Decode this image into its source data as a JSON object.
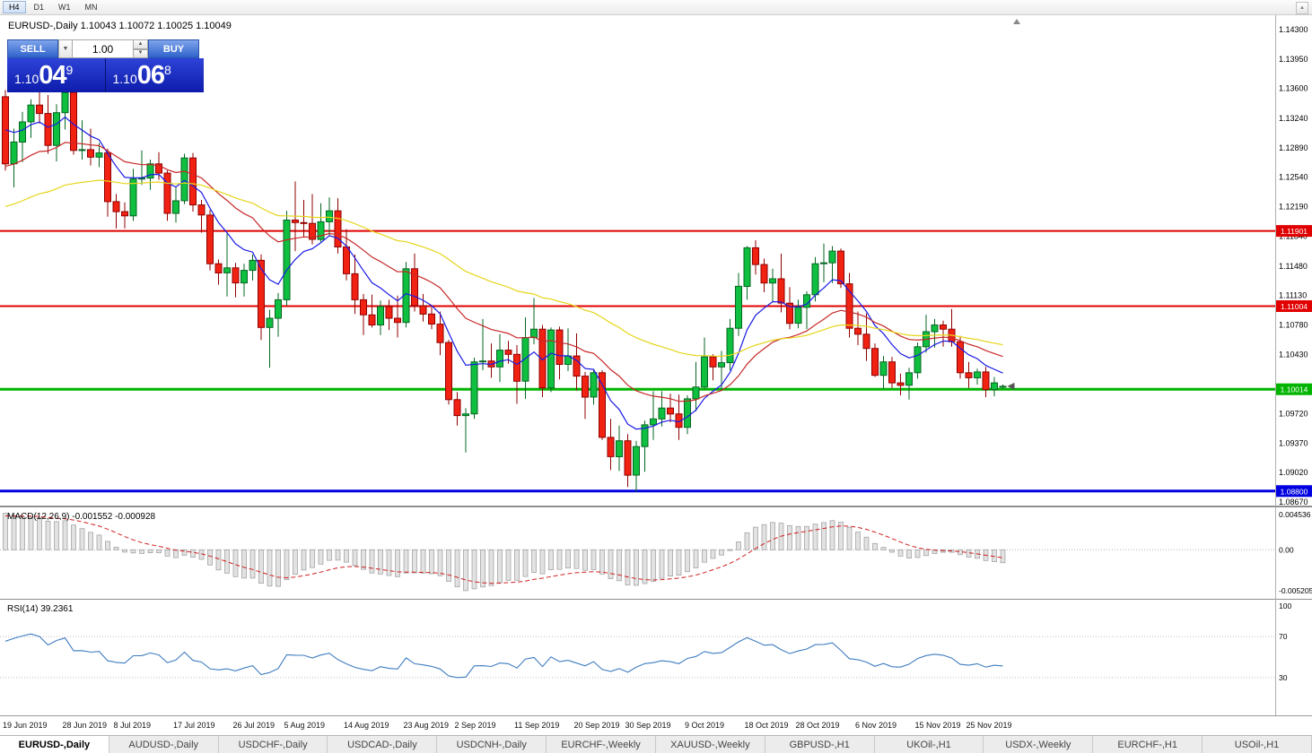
{
  "toolbar": {
    "timeframes": [
      "H4",
      "D1",
      "W1",
      "MN"
    ],
    "active_timeframe": "H4"
  },
  "chart": {
    "title": "EURUSD-,Daily 1.10043 1.10072 1.10025 1.10049",
    "symbol": "EURUSD-",
    "period": "Daily"
  },
  "trade": {
    "sell_label": "SELL",
    "buy_label": "BUY",
    "volume": "1.00",
    "sell_price": {
      "base": "1.10",
      "big": "04",
      "sup": "9"
    },
    "buy_price": {
      "base": "1.10",
      "big": "06",
      "sup": "8"
    }
  },
  "chart_data": {
    "type": "candlestick",
    "symbol": "EURUSD-",
    "timeframe": "Daily",
    "ohlc_display": {
      "open": "1.10043",
      "high": "1.10072",
      "low": "1.10025",
      "close": "1.10049"
    },
    "ylim": [
      1.0867,
      1.143
    ],
    "up_color": "#0fbf3f",
    "up_edge": "#056622",
    "down_color": "#f22213",
    "down_edge": "#8f0000",
    "y_axis_labels": [
      "1.14300",
      "1.13950",
      "1.13600",
      "1.13240",
      "1.12890",
      "1.12540",
      "1.12190",
      "1.11840",
      "1.11480",
      "1.11130",
      "1.10780",
      "1.10430",
      "1.09720",
      "1.09370",
      "1.09020",
      "1.08670"
    ],
    "x_axis_labels": [
      {
        "text": "19 Jun 2019",
        "i": 0
      },
      {
        "text": "28 Jun 2019",
        "i": 7
      },
      {
        "text": "8 Jul 2019",
        "i": 13
      },
      {
        "text": "17 Jul 2019",
        "i": 20
      },
      {
        "text": "26 Jul 2019",
        "i": 27
      },
      {
        "text": "5 Aug 2019",
        "i": 33
      },
      {
        "text": "14 Aug 2019",
        "i": 40
      },
      {
        "text": "23 Aug 2019",
        "i": 47
      },
      {
        "text": "2 Sep 2019",
        "i": 53
      },
      {
        "text": "11 Sep 2019",
        "i": 60
      },
      {
        "text": "20 Sep 2019",
        "i": 67
      },
      {
        "text": "30 Sep 2019",
        "i": 73
      },
      {
        "text": "9 Oct 2019",
        "i": 80
      },
      {
        "text": "18 Oct 2019",
        "i": 87
      },
      {
        "text": "28 Oct 2019",
        "i": 93
      },
      {
        "text": "6 Nov 2019",
        "i": 100
      },
      {
        "text": "15 Nov 2019",
        "i": 107
      },
      {
        "text": "25 Nov 2019",
        "i": 113
      }
    ],
    "hlines": [
      {
        "value": 1.11901,
        "label": "1.11901",
        "color": "#e00000",
        "width": 2
      },
      {
        "value": 1.11004,
        "label": "1.11004",
        "color": "#e00000",
        "width": 2
      },
      {
        "value": 1.10014,
        "label": "1.10014",
        "color": "#00b400",
        "width": 3
      },
      {
        "value": 1.088,
        "label": "1.08800",
        "color": "#0000e0",
        "width": 3
      }
    ],
    "moving_averages": [
      {
        "period": 8,
        "color": "#1a1ae6"
      },
      {
        "period": 21,
        "color": "#c82828"
      },
      {
        "period": 50,
        "color": "#e6d51a"
      }
    ],
    "warmup_closes": [
      1.116,
      1.1172,
      1.115,
      1.1185,
      1.1232,
      1.1268,
      1.129,
      1.1308,
      1.1322,
      1.1337,
      1.1345,
      1.134,
      1.1333,
      1.1339,
      1.1346
    ],
    "candles": [
      [
        1.135,
        1.1358,
        1.1262,
        1.127
      ],
      [
        1.127,
        1.1312,
        1.1242,
        1.1296
      ],
      [
        1.1296,
        1.1332,
        1.1272,
        1.132
      ],
      [
        1.132,
        1.1347,
        1.1301,
        1.134
      ],
      [
        1.134,
        1.1362,
        1.1318,
        1.133
      ],
      [
        1.133,
        1.1352,
        1.1282,
        1.1292
      ],
      [
        1.1292,
        1.1341,
        1.1273,
        1.1331
      ],
      [
        1.1331,
        1.136,
        1.1311,
        1.1355
      ],
      [
        1.1355,
        1.1361,
        1.1281,
        1.1286
      ],
      [
        1.1286,
        1.1322,
        1.1275,
        1.1287
      ],
      [
        1.1287,
        1.1312,
        1.1268,
        1.1278
      ],
      [
        1.1278,
        1.1295,
        1.1266,
        1.1283
      ],
      [
        1.1283,
        1.1288,
        1.1207,
        1.1225
      ],
      [
        1.1225,
        1.1234,
        1.1193,
        1.1213
      ],
      [
        1.1213,
        1.1224,
        1.1193,
        1.1208
      ],
      [
        1.1208,
        1.1264,
        1.1202,
        1.1252
      ],
      [
        1.1252,
        1.1286,
        1.1245,
        1.1253
      ],
      [
        1.1253,
        1.1275,
        1.1239,
        1.127
      ],
      [
        1.127,
        1.1284,
        1.1251,
        1.1259
      ],
      [
        1.1259,
        1.1262,
        1.1202,
        1.1211
      ],
      [
        1.1211,
        1.1243,
        1.12,
        1.1226
      ],
      [
        1.1226,
        1.1282,
        1.1222,
        1.1277
      ],
      [
        1.1277,
        1.1283,
        1.1213,
        1.1221
      ],
      [
        1.1221,
        1.1227,
        1.1188,
        1.1209
      ],
      [
        1.1209,
        1.1215,
        1.1143,
        1.1151
      ],
      [
        1.1151,
        1.1156,
        1.1126,
        1.114
      ],
      [
        1.114,
        1.1187,
        1.1112,
        1.1146
      ],
      [
        1.1146,
        1.1152,
        1.1111,
        1.1128
      ],
      [
        1.1128,
        1.1151,
        1.1112,
        1.1143
      ],
      [
        1.1143,
        1.1162,
        1.1131,
        1.1155
      ],
      [
        1.1155,
        1.1162,
        1.106,
        1.1075
      ],
      [
        1.1075,
        1.1096,
        1.1027,
        1.1086
      ],
      [
        1.1086,
        1.1116,
        1.1064,
        1.1108
      ],
      [
        1.1108,
        1.1214,
        1.1101,
        1.1203
      ],
      [
        1.1203,
        1.1249,
        1.1166,
        1.12
      ],
      [
        1.12,
        1.1227,
        1.1183,
        1.1199
      ],
      [
        1.1199,
        1.1234,
        1.1174,
        1.118
      ],
      [
        1.118,
        1.1223,
        1.1177,
        1.1201
      ],
      [
        1.1201,
        1.123,
        1.1184,
        1.1214
      ],
      [
        1.1214,
        1.1229,
        1.1163,
        1.1171
      ],
      [
        1.1171,
        1.1192,
        1.1131,
        1.1139
      ],
      [
        1.1139,
        1.1162,
        1.1091,
        1.1108
      ],
      [
        1.1108,
        1.1115,
        1.1066,
        1.109
      ],
      [
        1.109,
        1.1114,
        1.1075,
        1.1078
      ],
      [
        1.1078,
        1.1107,
        1.1066,
        1.11
      ],
      [
        1.11,
        1.1108,
        1.1072,
        1.1086
      ],
      [
        1.1086,
        1.1113,
        1.1063,
        1.1081
      ],
      [
        1.1081,
        1.1153,
        1.1075,
        1.1145
      ],
      [
        1.1145,
        1.1163,
        1.1094,
        1.1101
      ],
      [
        1.1101,
        1.1115,
        1.1082,
        1.1091
      ],
      [
        1.1091,
        1.1099,
        1.1073,
        1.1079
      ],
      [
        1.1079,
        1.1094,
        1.1042,
        1.1057
      ],
      [
        1.1057,
        1.106,
        1.0983,
        1.0989
      ],
      [
        1.0989,
        1.0998,
        1.0958,
        1.097
      ],
      [
        1.097,
        1.0979,
        1.0926,
        1.0972
      ],
      [
        1.0972,
        1.1039,
        1.0966,
        1.1034
      ],
      [
        1.1034,
        1.1085,
        1.1024,
        1.1035
      ],
      [
        1.1035,
        1.1056,
        1.1015,
        1.1028
      ],
      [
        1.1028,
        1.1067,
        1.101,
        1.1048
      ],
      [
        1.1048,
        1.1059,
        1.1032,
        1.1043
      ],
      [
        1.1043,
        1.1054,
        1.0984,
        1.1011
      ],
      [
        1.1011,
        1.1087,
        1.099,
        1.1063
      ],
      [
        1.1063,
        1.111,
        1.1055,
        1.1073
      ],
      [
        1.1073,
        1.1078,
        1.0992,
        1.1003
      ],
      [
        1.1003,
        1.1075,
        1.0998,
        1.1072
      ],
      [
        1.1072,
        1.1076,
        1.1013,
        1.1031
      ],
      [
        1.1031,
        1.1074,
        1.1023,
        1.1041
      ],
      [
        1.1041,
        1.1068,
        1.1,
        1.1017
      ],
      [
        1.1017,
        1.1022,
        1.0966,
        1.0992
      ],
      [
        1.0992,
        1.1024,
        1.0983,
        1.1021
      ],
      [
        1.1021,
        1.1024,
        1.0941,
        1.0944
      ],
      [
        1.0944,
        1.0966,
        1.0905,
        1.0921
      ],
      [
        1.0921,
        1.0958,
        1.0904,
        1.094
      ],
      [
        1.094,
        1.0948,
        1.0885,
        1.0899
      ],
      [
        1.0899,
        1.094,
        1.0879,
        1.0933
      ],
      [
        1.0933,
        1.0964,
        1.0903,
        1.0959
      ],
      [
        1.0959,
        1.0999,
        1.0941,
        1.0966
      ],
      [
        1.0966,
        1.0999,
        1.0957,
        1.0979
      ],
      [
        1.0979,
        1.0996,
        1.0962,
        1.0972
      ],
      [
        1.0972,
        1.0995,
        1.0941,
        1.0956
      ],
      [
        1.0956,
        1.0994,
        1.0948,
        1.099
      ],
      [
        1.099,
        1.1034,
        1.0975,
        1.1004
      ],
      [
        1.1004,
        1.1063,
        1.1002,
        1.104
      ],
      [
        1.104,
        1.1043,
        1.1012,
        1.1028
      ],
      [
        1.1028,
        1.1047,
        1.1001,
        1.1033
      ],
      [
        1.1033,
        1.1085,
        1.1024,
        1.1074
      ],
      [
        1.1074,
        1.114,
        1.1065,
        1.1124
      ],
      [
        1.1124,
        1.1172,
        1.1108,
        1.117
      ],
      [
        1.117,
        1.1179,
        1.1138,
        1.115
      ],
      [
        1.115,
        1.1157,
        1.1117,
        1.1128
      ],
      [
        1.1128,
        1.1145,
        1.1105,
        1.1133
      ],
      [
        1.1133,
        1.1163,
        1.1093,
        1.1104
      ],
      [
        1.1104,
        1.1123,
        1.1073,
        1.108
      ],
      [
        1.108,
        1.1108,
        1.1074,
        1.1099
      ],
      [
        1.1099,
        1.1118,
        1.1073,
        1.1114
      ],
      [
        1.1114,
        1.1159,
        1.1106,
        1.1151
      ],
      [
        1.1151,
        1.1175,
        1.1129,
        1.1152
      ],
      [
        1.1152,
        1.1172,
        1.1128,
        1.1166
      ],
      [
        1.1166,
        1.1169,
        1.1122,
        1.1127
      ],
      [
        1.1127,
        1.114,
        1.1063,
        1.1074
      ],
      [
        1.1074,
        1.1094,
        1.1054,
        1.1067
      ],
      [
        1.1067,
        1.1092,
        1.1035,
        1.105
      ],
      [
        1.105,
        1.1056,
        1.1016,
        1.1018
      ],
      [
        1.1018,
        1.1041,
        1.1002,
        1.1034
      ],
      [
        1.1034,
        1.104,
        1.1003,
        1.1009
      ],
      [
        1.1009,
        1.102,
        1.0994,
        1.1006
      ],
      [
        1.1006,
        1.1027,
        1.0989,
        1.1021
      ],
      [
        1.1021,
        1.1057,
        1.1014,
        1.1052
      ],
      [
        1.1052,
        1.109,
        1.1045,
        1.107
      ],
      [
        1.107,
        1.1085,
        1.1051,
        1.1078
      ],
      [
        1.1078,
        1.1083,
        1.1052,
        1.1073
      ],
      [
        1.1073,
        1.1097,
        1.1052,
        1.1058
      ],
      [
        1.1058,
        1.1065,
        1.1014,
        1.1021
      ],
      [
        1.1021,
        1.1034,
        1.1003,
        1.1015
      ],
      [
        1.1015,
        1.1026,
        1.1007,
        1.1022
      ],
      [
        1.1022,
        1.1028,
        1.0992,
        1.1001
      ],
      [
        1.1001,
        1.1016,
        1.0993,
        1.1009
      ],
      [
        1.10043,
        1.10072,
        1.10025,
        1.10049
      ]
    ],
    "indicators": [
      {
        "name": "MACD",
        "params": "12,26,9",
        "label": "MACD(12,26,9) -0.001552 -0.000928",
        "main_value": "-0.001552",
        "signal_value": "-0.000928",
        "ylim": [
          -0.005205,
          0.004536
        ],
        "scale_labels": [
          "0.004536",
          "0.00",
          "-0.005205"
        ],
        "histogram_color": "#e2e2e2",
        "histogram_edge": "#9a9a9a",
        "signal_color": "#d02020"
      },
      {
        "name": "RSI",
        "params": "14",
        "label": "RSI(14) 39.2361",
        "value": "39.2361",
        "ylim": [
          0,
          100
        ],
        "scale_labels": [
          "100",
          "70",
          "30"
        ],
        "levels": [
          70,
          30
        ],
        "line_color": "#3e7cc0"
      }
    ]
  },
  "tabs": {
    "items": [
      "EURUSD-,Daily",
      "AUDUSD-,Daily",
      "USDCHF-,Daily",
      "USDCAD-,Daily",
      "USDCNH-,Daily",
      "EURCHF-,Weekly",
      "XAUUSD-,Weekly",
      "GBPUSD-,H1",
      "UKOil-,H1",
      "USDX-,Weekly",
      "EURCHF-,H1",
      "USOil-,H1"
    ],
    "active": "EURUSD-,Daily"
  }
}
